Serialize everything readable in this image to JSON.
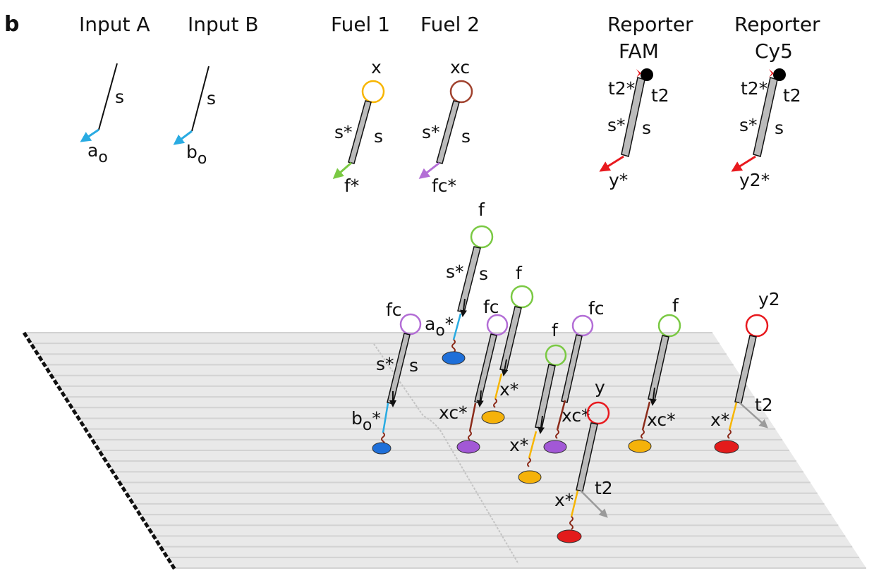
{
  "panel_letter": "b",
  "headers": {
    "input_a": "Input A",
    "input_b": "Input B",
    "fuel1": "Fuel 1",
    "fuel2": "Fuel 2",
    "reporter_fam_line1": "Reporter",
    "reporter_fam_line2": "FAM",
    "reporter_cy5_line1": "Reporter",
    "reporter_cy5_line2": "Cy5"
  },
  "labels": {
    "s": "s",
    "s_star": "s*",
    "a_o": "a",
    "a_sub": "o",
    "b_o": "b",
    "b_sub": "o",
    "x": "x",
    "xc": "xc",
    "f": "f",
    "fc": "fc",
    "f_star": "f*",
    "fc_star": "fc*",
    "t2": "t2",
    "t2_star": "t2*",
    "y": "y",
    "y2": "y2",
    "y_star": "y*",
    "y2_star": "y2*",
    "x_star": "x*",
    "xc_star": "xc*",
    "a_o_star": "a",
    "b_o_star": "b",
    "star": "*"
  },
  "colors": {
    "input_domain": "#29abe2",
    "fuel1_loop": "#f7b500",
    "fuel2_loop": "#a0412d",
    "fuel1_tail": "#7ac943",
    "fuel2_tail": "#b36ed6",
    "reporter": "#e8191e",
    "f_loop": "#7ac943",
    "fc_loop": "#b36ed6",
    "y_loop": "#e8191e",
    "x_domain": "#f7b500",
    "tether": "#8b2b1a",
    "anchor_blue": "#1e6fd9",
    "anchor_purple": "#a258d6",
    "anchor_orange": "#f5b20a",
    "anchor_red": "#e31b1b",
    "surface": "#e6e6e6",
    "surface_line": "#d2d2d2",
    "duplex_fill": "#bbbbbb",
    "grey_arrow": "#9a9a9a"
  }
}
